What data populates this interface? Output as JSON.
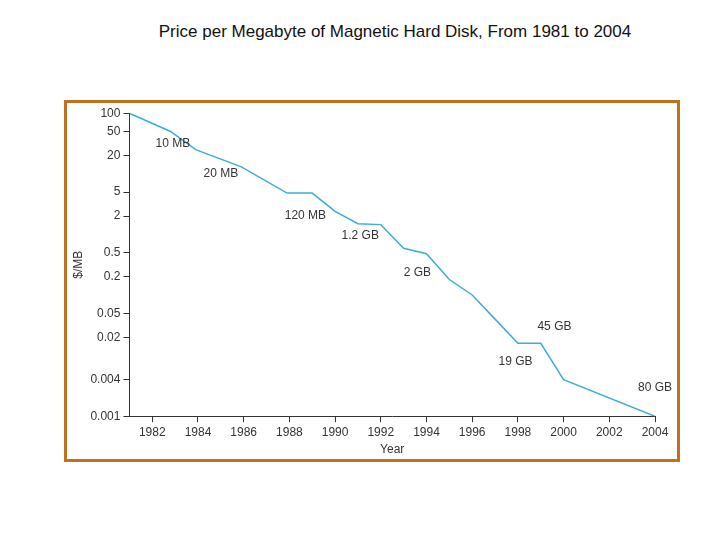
{
  "chart_data": {
    "type": "line",
    "title": "Price per Megabyte of Magnetic Hard Disk, From 1981 to 2004",
    "x_label": "Year",
    "y_label": "$/MB",
    "x": [
      1981,
      1982.8,
      1983.9,
      1985.9,
      1987.9,
      1989,
      1990,
      1991,
      1992,
      1993,
      1994,
      1995,
      1996,
      1997,
      1998,
      1999,
      2000,
      2004
    ],
    "values": [
      100,
      50,
      25,
      13,
      4.8,
      4.8,
      2.4,
      1.5,
      1.45,
      0.59,
      0.48,
      0.18,
      0.1,
      0.04,
      0.016,
      0.016,
      0.004,
      0.001
    ],
    "color": "#3aaed8",
    "xlim": [
      1981,
      2004
    ],
    "xticks": [
      1982,
      1984,
      1986,
      1988,
      1990,
      1992,
      1994,
      1996,
      1998,
      2000,
      2002,
      2004
    ],
    "ylim": [
      0.001,
      100
    ],
    "yticks": [
      100,
      50,
      20,
      5,
      2,
      0.5,
      0.2,
      0.05,
      0.02,
      0.004,
      0.001
    ],
    "log": "y",
    "grid": false,
    "annotations": [
      {
        "text": "10 MB",
        "x": 1982.9,
        "y": 31
      },
      {
        "text": "20 MB",
        "x": 1985,
        "y": 10
      },
      {
        "text": "120 MB",
        "x": 1988.7,
        "y": 2.05
      },
      {
        "text": "1.2 GB",
        "x": 1991.1,
        "y": 0.96
      },
      {
        "text": "2 GB",
        "x": 1993.6,
        "y": 0.23
      },
      {
        "text": "19 GB",
        "x": 1997.9,
        "y": 0.008
      },
      {
        "text": "45 GB",
        "x": 1999.6,
        "y": 0.03
      },
      {
        "text": "80 GB",
        "x": 2004,
        "y": 0.003
      }
    ]
  }
}
